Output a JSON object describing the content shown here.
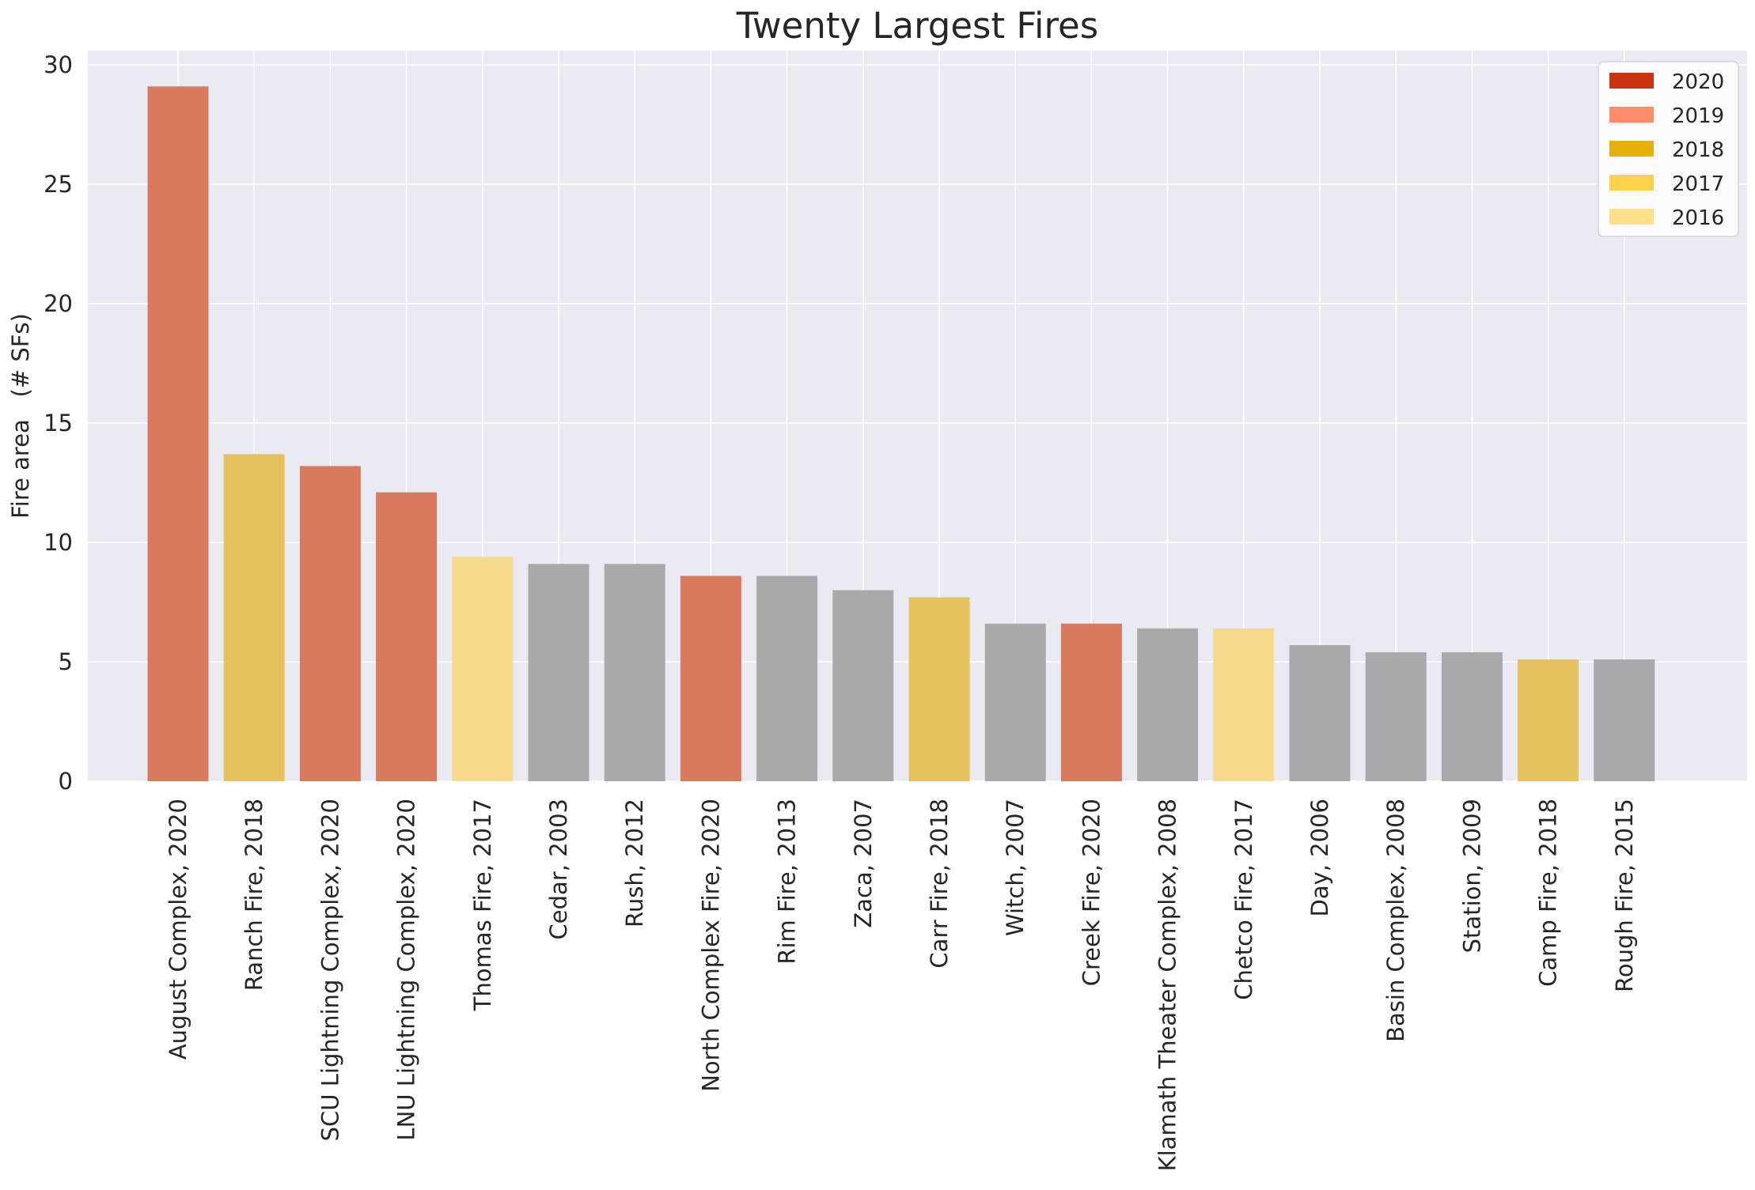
{
  "chart_data": {
    "type": "bar",
    "title": "Twenty Largest Fires",
    "xlabel": "",
    "ylabel": "Fire area   (# SFs)",
    "ylim": [
      0,
      30.6
    ],
    "yticks": [
      0,
      5,
      10,
      15,
      20,
      25,
      30
    ],
    "grid": true,
    "legend_position": "top-right",
    "colors": {
      "background": "#eaeaf2",
      "grid": "#ffffff",
      "other": "#a9a9ab",
      "2020": "#d97a5e",
      "2018": "#e6c25e",
      "2017": "#f6da8c"
    },
    "legend": [
      {
        "label": "2020",
        "color": "#cc3311"
      },
      {
        "label": "2019",
        "color": "#ff8c69"
      },
      {
        "label": "2018",
        "color": "#e6b00a"
      },
      {
        "label": "2017",
        "color": "#ffd24d"
      },
      {
        "label": "2016",
        "color": "#ffe08a"
      }
    ],
    "categories": [
      "August Complex, 2020",
      "Ranch Fire, 2018",
      "SCU Lightning Complex, 2020",
      "LNU Lightning Complex, 2020",
      "Thomas Fire, 2017",
      "Cedar, 2003",
      "Rush, 2012",
      "North Complex Fire, 2020",
      "Rim Fire, 2013",
      "Zaca, 2007",
      "Carr Fire, 2018",
      "Witch, 2007",
      "Creek Fire, 2020",
      "Klamath Theater Complex, 2008",
      "Chetco Fire, 2017",
      "Day, 2006",
      "Basin Complex, 2008",
      "Station, 2009",
      "Camp Fire, 2018",
      "Rough Fire, 2015"
    ],
    "values": [
      29.1,
      13.7,
      13.2,
      12.1,
      9.4,
      9.1,
      9.1,
      8.6,
      8.6,
      8.0,
      7.7,
      6.6,
      6.6,
      6.4,
      6.4,
      5.7,
      5.4,
      5.4,
      5.1,
      5.1
    ],
    "bar_groups": [
      "2020",
      "2018",
      "2020",
      "2020",
      "2017",
      "other",
      "other",
      "2020",
      "other",
      "other",
      "2018",
      "other",
      "2020",
      "other",
      "2017",
      "other",
      "other",
      "other",
      "2018",
      "other"
    ]
  }
}
